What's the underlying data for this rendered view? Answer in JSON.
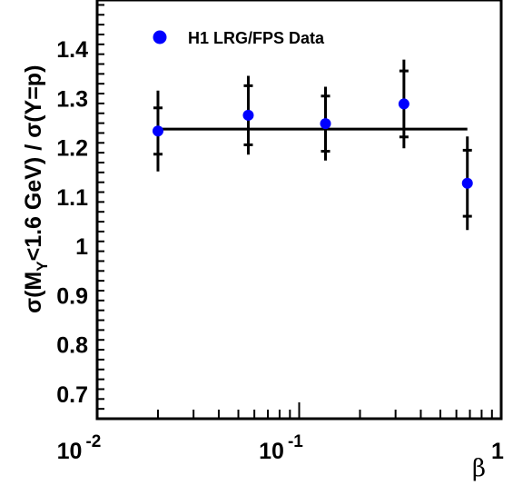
{
  "chart_data": {
    "type": "scatter",
    "xscale": "log",
    "xlim": [
      0.01,
      1
    ],
    "ylim": [
      0.65,
      1.5
    ],
    "x_ticks": [
      {
        "base": "10",
        "exp": "-2"
      },
      {
        "base": "10",
        "exp": "-1"
      },
      {
        "base": "1",
        "exp": ""
      }
    ],
    "y_ticks": [
      "0.7",
      "0.8",
      "0.9",
      "1",
      "1.1",
      "1.2",
      "1.3",
      "1.4"
    ],
    "xlabel": "β",
    "ylabel": "σ(M_Y<1.6 GeV) / σ(Y=p)",
    "ylabel_parts": {
      "pre": "σ(M",
      "sub": "Y",
      "post": "<1.6 GeV) / σ(Y=p)"
    },
    "legend": {
      "label": "H1 LRG/FPS Data",
      "color": "#0000ff",
      "position": "top-left"
    },
    "series": [
      {
        "name": "H1 LRG/FPS Data",
        "color": "#0000ff",
        "points": [
          {
            "x": 0.02,
            "y": 1.234,
            "stat_err": 0.047,
            "tot_err": 0.082
          },
          {
            "x": 0.056,
            "y": 1.266,
            "stat_err": 0.06,
            "tot_err": 0.08
          },
          {
            "x": 0.135,
            "y": 1.249,
            "stat_err": 0.056,
            "tot_err": 0.075
          },
          {
            "x": 0.33,
            "y": 1.289,
            "stat_err": 0.067,
            "tot_err": 0.09
          },
          {
            "x": 0.68,
            "y": 1.128,
            "stat_err": 0.067,
            "tot_err": 0.095
          }
        ]
      }
    ],
    "fit_line": {
      "y": 1.238,
      "x_range": [
        0.02,
        0.68
      ],
      "color": "#000000"
    }
  }
}
